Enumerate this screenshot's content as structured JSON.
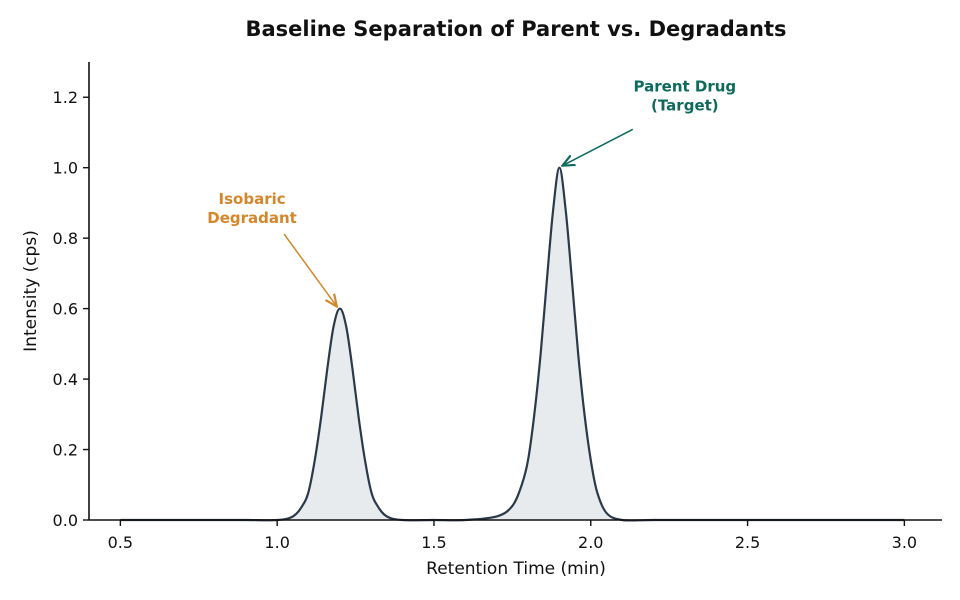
{
  "chart_data": {
    "type": "line",
    "title": "Baseline Separation of Parent vs. Degradants",
    "xlabel": "Retention Time (min)",
    "ylabel": "Intensity (cps)",
    "xlim": [
      0.4,
      3.12
    ],
    "ylim": [
      0.0,
      1.3
    ],
    "x_ticks": [
      0.5,
      1.0,
      1.5,
      2.0,
      2.5,
      3.0
    ],
    "x_tick_labels": [
      "0.5",
      "1.0",
      "1.5",
      "2.0",
      "2.5",
      "3.0"
    ],
    "y_ticks": [
      0.0,
      0.2,
      0.4,
      0.6,
      0.8,
      1.0,
      1.2
    ],
    "y_tick_labels": [
      "0.0",
      "0.2",
      "0.4",
      "0.6",
      "0.8",
      "1.0",
      "1.2"
    ],
    "grid": false,
    "legend": "none",
    "line_color": "#2b3a4a",
    "fill_color": "#e8ebee",
    "series": [
      {
        "x": [
          0.5,
          0.6,
          0.7,
          0.8,
          0.9,
          1.0,
          1.05,
          1.08,
          1.1,
          1.12,
          1.14,
          1.16,
          1.18,
          1.2,
          1.22,
          1.24,
          1.26,
          1.28,
          1.3,
          1.32,
          1.35,
          1.4,
          1.5,
          1.6,
          1.7,
          1.75,
          1.78,
          1.8,
          1.82,
          1.84,
          1.86,
          1.88,
          1.9,
          1.92,
          1.94,
          1.96,
          1.98,
          2.0,
          2.02,
          2.05,
          2.1,
          2.2,
          2.4,
          2.6,
          2.8,
          3.0
        ],
        "y": [
          0.0,
          0.0,
          0.0,
          0.0,
          0.0,
          0.0,
          0.01,
          0.04,
          0.08,
          0.17,
          0.29,
          0.43,
          0.55,
          0.6,
          0.55,
          0.43,
          0.29,
          0.17,
          0.08,
          0.04,
          0.01,
          0.0,
          0.0,
          0.0,
          0.01,
          0.04,
          0.1,
          0.17,
          0.3,
          0.47,
          0.68,
          0.88,
          1.0,
          0.88,
          0.68,
          0.47,
          0.3,
          0.17,
          0.08,
          0.02,
          0.0,
          0.0,
          0.0,
          0.0,
          0.0,
          0.0
        ]
      }
    ],
    "annotations": [
      {
        "text_lines": [
          "Isobaric",
          "Degradant"
        ],
        "color": "#d4862a",
        "point": [
          1.2,
          0.6
        ],
        "text_at": [
          0.92,
          0.84
        ]
      },
      {
        "text_lines": [
          "Parent Drug",
          "(Target)"
        ],
        "color": "#0e6b5c",
        "point": [
          1.9,
          1.0
        ],
        "text_at": [
          2.3,
          1.16
        ]
      }
    ]
  }
}
